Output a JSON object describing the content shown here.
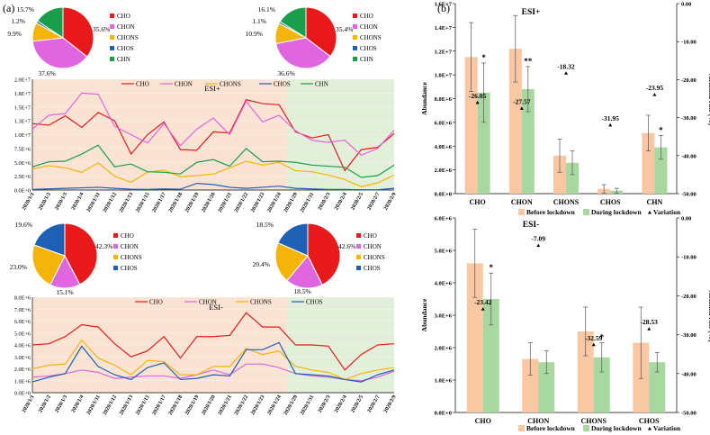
{
  "panel_labels": {
    "a": "(a)",
    "b": "(b)"
  },
  "colors": {
    "CHO": "#e8191a",
    "CHON": "#e066e0",
    "CHONS": "#f5b40a",
    "CHOS": "#1f5fb4",
    "CHN": "#1b9e4b",
    "before": "#f9c8a3",
    "during": "#a8d8a0",
    "shade_before": "#fbe3d3",
    "shade_during": "#e2efd9"
  },
  "chart_data": [
    {
      "id": "pie_esi_pos_before",
      "type": "pie",
      "slices": [
        {
          "label": "CHO",
          "value": 35.6,
          "text": "35.6%"
        },
        {
          "label": "CHON",
          "value": 37.6,
          "text": "37.6%"
        },
        {
          "label": "CHONS",
          "value": 9.9,
          "text": "9.9%"
        },
        {
          "label": "CHOS",
          "value": 1.2,
          "text": "1.2%"
        },
        {
          "label": "CHN",
          "value": 15.7,
          "text": "15.7%"
        }
      ],
      "legend": [
        "CHO",
        "CHON",
        "CHONS",
        "CHOS",
        "CHN"
      ]
    },
    {
      "id": "pie_esi_pos_during",
      "type": "pie",
      "slices": [
        {
          "label": "CHO",
          "value": 35.4,
          "text": "35.4%"
        },
        {
          "label": "CHON",
          "value": 36.6,
          "text": "36.6%"
        },
        {
          "label": "CHONS",
          "value": 10.9,
          "text": "10.9%"
        },
        {
          "label": "CHOS",
          "value": 1.1,
          "text": "1.1%"
        },
        {
          "label": "CHN",
          "value": 16.1,
          "text": "16.1%"
        }
      ],
      "legend": [
        "CHO",
        "CHON",
        "CHONS",
        "CHOS",
        "CHN"
      ]
    },
    {
      "id": "line_esi_pos",
      "type": "line",
      "title": "ESI+",
      "x": [
        "2020/1/1",
        "2020/1/2",
        "2020/1/3",
        "2020/1/4",
        "2020/1/11",
        "2020/1/12",
        "2020/1/13",
        "2020/1/15",
        "2020/1/17",
        "2020/1/18",
        "2020/1/19",
        "2020/1/20",
        "2020/1/21",
        "2020/1/22",
        "2020/1/23",
        "2020/1/24",
        "2020/1/29",
        "2020/1/31",
        "2020/2/3",
        "2020/2/4",
        "2020/2/5",
        "2020/2/7",
        "2020/2/9"
      ],
      "yticks": [
        "0.0E+0",
        "2.5E+6",
        "5.0E+6",
        "7.5E+6",
        "1.0E+7",
        "1.3E+7",
        "1.5E+7",
        "1.8E+7",
        "2.0E+7"
      ],
      "ylim": [
        0,
        20000000
      ],
      "lockdown_start_index": 16,
      "series": [
        {
          "name": "CHO",
          "values": [
            12000000,
            11700000,
            13400000,
            11300000,
            14000000,
            12500000,
            6500000,
            10000000,
            12300000,
            7300000,
            7200000,
            10500000,
            10300000,
            16300000,
            15600000,
            15400000,
            10500000,
            9400000,
            10000000,
            3500000,
            7300000,
            7700000,
            10200000
          ]
        },
        {
          "name": "CHON",
          "values": [
            11000000,
            13500000,
            13800000,
            17500000,
            17300000,
            11500000,
            10000000,
            8500000,
            12000000,
            8000000,
            11000000,
            13000000,
            10000000,
            16000000,
            12300000,
            13500000,
            10700000,
            9000000,
            8600000,
            9000000,
            6300000,
            7500000,
            10800000
          ]
        },
        {
          "name": "CHONS",
          "values": [
            3800000,
            4400000,
            4000000,
            3200000,
            4900000,
            2500000,
            1400000,
            3200000,
            3600000,
            2400000,
            2600000,
            2900000,
            4000000,
            5200000,
            4500000,
            5000000,
            3500000,
            3300000,
            2700000,
            1900000,
            600000,
            1300000,
            2700000
          ]
        },
        {
          "name": "CHOS",
          "values": [
            100000,
            200000,
            300000,
            400000,
            500000,
            300000,
            150000,
            100000,
            200000,
            150000,
            1200000,
            1000000,
            500000,
            300000,
            500000,
            700000,
            300000,
            200000,
            100000,
            100000,
            50000,
            50000,
            300000
          ]
        },
        {
          "name": "CHN",
          "values": [
            4200000,
            5100000,
            5200000,
            6500000,
            8100000,
            4200000,
            4700000,
            3300000,
            3200000,
            2900000,
            5000000,
            5500000,
            4300000,
            7500000,
            5100000,
            5200000,
            5000000,
            4500000,
            4300000,
            4100000,
            2300000,
            2600000,
            4500000
          ]
        }
      ]
    },
    {
      "id": "pie_esi_neg_before",
      "type": "pie",
      "slices": [
        {
          "label": "CHO",
          "value": 42.3,
          "text": "42.3%"
        },
        {
          "label": "CHON",
          "value": 15.1,
          "text": "15.1%"
        },
        {
          "label": "CHONS",
          "value": 23.0,
          "text": "23.0%"
        },
        {
          "label": "CHOS",
          "value": 19.6,
          "text": "19.6%"
        }
      ],
      "legend": [
        "CHO",
        "CHON",
        "CHONS",
        "CHOS"
      ]
    },
    {
      "id": "pie_esi_neg_during",
      "type": "pie",
      "slices": [
        {
          "label": "CHO",
          "value": 42.6,
          "text": "42.6%"
        },
        {
          "label": "CHON",
          "value": 18.5,
          "text": "18.5%"
        },
        {
          "label": "CHONS",
          "value": 20.4,
          "text": "20.4%"
        },
        {
          "label": "CHOS",
          "value": 18.5,
          "text": "18.5%"
        }
      ],
      "legend": [
        "CHO",
        "CHON",
        "CHONS",
        "CHOS"
      ]
    },
    {
      "id": "line_esi_neg",
      "type": "line",
      "title": "ESI-",
      "x": [
        "2020/1/1",
        "2020/1/2",
        "2020/1/3",
        "2020/1/4",
        "2020/1/11",
        "2020/1/12",
        "2020/1/13",
        "2020/1/15",
        "2020/1/17",
        "2020/1/18",
        "2020/1/19",
        "2020/1/20",
        "2020/1/21",
        "2020/1/22",
        "2020/1/23",
        "2020/1/24",
        "2020/1/29",
        "2020/1/31",
        "2020/2/3",
        "2020/2/4",
        "2020/2/5",
        "2020/2/7",
        "2020/2/9"
      ],
      "yticks": [
        "0.0E+0",
        "1.0E+6",
        "2.0E+6",
        "3.0E+6",
        "4.0E+6",
        "5.0E+6",
        "6.0E+6",
        "7.0E+6",
        "8.0E+6"
      ],
      "ylim": [
        0,
        8000000
      ],
      "lockdown_start_index": 16,
      "series": [
        {
          "name": "CHO",
          "values": [
            4000000,
            4100000,
            4700000,
            5700000,
            5500000,
            4100000,
            3000000,
            3500000,
            4700000,
            2900000,
            4700000,
            4700000,
            4800000,
            6700000,
            5500000,
            5500000,
            4000000,
            4000000,
            3900000,
            1900000,
            3200000,
            4000000,
            4100000
          ]
        },
        {
          "name": "CHON",
          "values": [
            1300000,
            1400000,
            1600000,
            1900000,
            1700000,
            1200000,
            1300000,
            1400000,
            1400000,
            1200000,
            1500000,
            1900000,
            1500000,
            2400000,
            2400000,
            2100000,
            1600000,
            1400000,
            1300000,
            1100000,
            1000000,
            1300000,
            1800000
          ]
        },
        {
          "name": "CHONS",
          "values": [
            2000000,
            2300000,
            2400000,
            4400000,
            2900000,
            2300000,
            1500000,
            2700000,
            2600000,
            1500000,
            1500000,
            2200000,
            2200000,
            3700000,
            3200000,
            3500000,
            2200000,
            1900000,
            1700000,
            1100000,
            1600000,
            1900000,
            2100000
          ]
        },
        {
          "name": "CHOS",
          "values": [
            900000,
            1300000,
            1600000,
            3900000,
            2200000,
            1500000,
            1100000,
            2100000,
            2500000,
            1100000,
            1200000,
            1500000,
            1400000,
            3600000,
            3600000,
            4200000,
            1600000,
            1500000,
            1400000,
            1100000,
            900000,
            1500000,
            1900000
          ]
        }
      ]
    },
    {
      "id": "bar_esi_pos",
      "type": "bar",
      "title": "ESI+",
      "ylabel": "Abundance",
      "y2label": "Variation rate (%)",
      "categories": [
        "CHO",
        "CHON",
        "CHONS",
        "CHOS",
        "CHN"
      ],
      "yticks": [
        "0.0E+0",
        "2.0E+6",
        "4.0E+6",
        "6.0E+6",
        "8.0E+6",
        "1.0E+7",
        "1.2E+7",
        "1.4E+7",
        "1.6E+7"
      ],
      "ylim": [
        0,
        16000000
      ],
      "y2ticks": [
        "0.00",
        "-10.00",
        "-20.00",
        "-30.00",
        "-40.00",
        "-50.00"
      ],
      "y2lim": [
        -50,
        0
      ],
      "series": [
        {
          "name": "Before lockdown",
          "values": [
            11500000,
            12200000,
            3200000,
            400000,
            5100000
          ],
          "errors": [
            2900000,
            2800000,
            1400000,
            350000,
            1500000
          ]
        },
        {
          "name": "During lockdown",
          "values": [
            8500000,
            8800000,
            2600000,
            250000,
            3900000
          ],
          "errors": [
            2500000,
            1900000,
            1000000,
            200000,
            1000000
          ]
        }
      ],
      "variation": [
        -26.05,
        -27.57,
        -18.32,
        -31.95,
        -23.95
      ],
      "variation_labels": [
        "-26.05",
        "-27.57",
        "-18.32",
        "-31.95",
        "-23.95"
      ],
      "significance": [
        "*",
        "**",
        "",
        "",
        "*"
      ],
      "legend": [
        "Before lockdown",
        "During lockdown",
        "Variation"
      ]
    },
    {
      "id": "bar_esi_neg",
      "type": "bar",
      "title": "ESI-",
      "ylabel": "Abundance",
      "y2label": "Variation rate (%)",
      "categories": [
        "CHO",
        "CHON",
        "CHONS",
        "CHOS"
      ],
      "yticks": [
        "0.0E+0",
        "1.0E+6",
        "2.0E+6",
        "3.0E+6",
        "4.0E+6",
        "5.0E+6",
        "6.0E+6"
      ],
      "ylim": [
        0,
        6000000
      ],
      "y2ticks": [
        "0.00",
        "-10.00",
        "-20.00",
        "-30.00",
        "-40.00",
        "-50.00"
      ],
      "y2lim": [
        -50,
        0
      ],
      "series": [
        {
          "name": "Before lockdown",
          "values": [
            4600000,
            1650000,
            2500000,
            2150000
          ],
          "errors": [
            1050000,
            500000,
            750000,
            1100000
          ]
        },
        {
          "name": "During lockdown",
          "values": [
            3500000,
            1550000,
            1700000,
            1550000
          ],
          "errors": [
            800000,
            350000,
            450000,
            300000
          ]
        }
      ],
      "variation": [
        -23.42,
        -7.09,
        -32.59,
        -28.53
      ],
      "variation_labels": [
        "-23.42",
        "-7.09",
        "-32.59",
        "-28.53"
      ],
      "significance": [
        "*",
        "",
        "*",
        ""
      ],
      "legend": [
        "Before lockdown",
        "During lockdown",
        "Variation"
      ]
    }
  ]
}
